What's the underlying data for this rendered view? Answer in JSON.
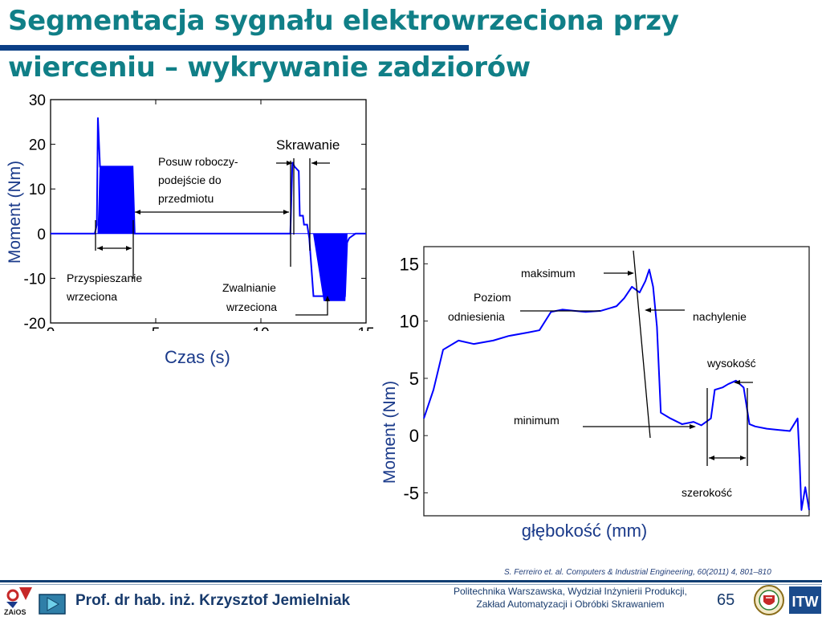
{
  "slide": {
    "title_line1": "Segmentacja sygnału elektrowrzeciona przy",
    "title_line2": "wierceniu – wykrywanie zadziorów",
    "citation": "S. Ferreiro et. al. Computers & Industrial Engineering, 60(2011) 4, 801–810",
    "author": "Prof. dr hab. inż. Krzysztof Jemielniak",
    "institute_line1": "Politechnika Warszawska, Wydział Inżynierii Produkcji,",
    "institute_line2": "Zakład Automatyzacji i Obróbki Skrawaniem",
    "page_number": "65",
    "logo_left_text": "ZAiOS",
    "logo_right_text": "ITW",
    "colors": {
      "title": "#107f87",
      "bar": "#0b3f86",
      "signal": "#0000ff",
      "footer": "#173a6c"
    }
  },
  "chart_data": [
    {
      "type": "line",
      "xlabel": "Czas (s)",
      "ylabel": "Moment (Nm)",
      "xlim": [
        0,
        15
      ],
      "ylim": [
        -20,
        30
      ],
      "x_ticks": [
        0,
        5,
        10,
        15
      ],
      "y_ticks": [
        -20,
        -10,
        0,
        10,
        20,
        30
      ],
      "x_tick_labels": [
        "0",
        "5",
        "10",
        "15"
      ],
      "y_tick_labels": [
        "-20",
        "-10",
        "0",
        "10",
        "20",
        "30"
      ],
      "grid": false,
      "series": [
        {
          "x": [
            0,
            2.1,
            2.2,
            2.25,
            2.35,
            2.5,
            3,
            3.5,
            3.9,
            4.0,
            4.2,
            5,
            7,
            9,
            11,
            11.4,
            11.5,
            11.6,
            11.8,
            11.85,
            12.0,
            12.05,
            12.2,
            12.3,
            12.5,
            13,
            13.5,
            14.0,
            14.1,
            14.2,
            14.5,
            15
          ],
          "y": [
            0,
            0,
            2,
            26,
            15,
            15,
            15,
            15,
            15,
            0,
            0,
            0,
            0,
            0,
            0,
            0,
            16,
            15,
            14,
            4,
            4,
            2,
            2,
            -1,
            -14,
            -14,
            -14,
            -14,
            -2,
            -1,
            0,
            0
          ],
          "band_upper": [
            0,
            0,
            0,
            0,
            15,
            15,
            15,
            15,
            15,
            0,
            0,
            0,
            0,
            0,
            0,
            0,
            0,
            0,
            0,
            0,
            0,
            0,
            0,
            0,
            0,
            0,
            0,
            0,
            0,
            0,
            0,
            0
          ],
          "band_lower": [
            0,
            0,
            0,
            0,
            0,
            0,
            0,
            0,
            0,
            0,
            0,
            0,
            0,
            0,
            0,
            0,
            0,
            0,
            0,
            0,
            0,
            0,
            0,
            0,
            0,
            -15,
            -15,
            -15,
            0,
            0,
            0,
            0
          ]
        }
      ],
      "annotations": [
        {
          "id": "posuw",
          "lines": [
            "Posuw roboczy-",
            "podejście do",
            "przedmiotu"
          ]
        },
        {
          "id": "skrawanie",
          "lines": [
            "Skrawanie"
          ]
        },
        {
          "id": "przyspieszanie",
          "lines": [
            "Przyspieszanie",
            "wrzeciona"
          ]
        },
        {
          "id": "zwalnianie",
          "lines": [
            "Zwalnianie",
            "wrzeciona"
          ]
        }
      ]
    },
    {
      "type": "line",
      "xlabel": "głębokość (mm)",
      "ylabel": "Moment (Nm)",
      "xlim": [
        0,
        10
      ],
      "ylim": [
        -7,
        16.5
      ],
      "y_ticks": [
        -5,
        0,
        5,
        10,
        15
      ],
      "y_tick_labels": [
        "-5",
        "0",
        "5",
        "10",
        "15"
      ],
      "grid": false,
      "series": [
        {
          "x": [
            0,
            0.25,
            0.5,
            0.9,
            1.3,
            1.8,
            2.2,
            2.7,
            3.0,
            3.3,
            3.6,
            3.9,
            4.2,
            4.6,
            5.0,
            5.2,
            5.4,
            5.6,
            5.75,
            5.85,
            5.95,
            6.05,
            6.15,
            6.4,
            6.7,
            7.0,
            7.2,
            7.45,
            7.55,
            7.75,
            7.9,
            8.1,
            8.3,
            8.45,
            8.6,
            8.9,
            9.2,
            9.5,
            9.7,
            9.75,
            9.8,
            9.9,
            10
          ],
          "y": [
            1.5,
            4,
            7.5,
            8.3,
            8.0,
            8.3,
            8.7,
            9.0,
            9.2,
            10.8,
            11.0,
            10.9,
            10.8,
            10.9,
            11.3,
            12.0,
            13.0,
            12.5,
            13.5,
            14.5,
            13.0,
            9.5,
            2.0,
            1.5,
            1.0,
            1.2,
            0.9,
            1.5,
            4.0,
            4.2,
            4.5,
            4.8,
            4.2,
            1.0,
            0.8,
            0.6,
            0.5,
            0.4,
            1.5,
            -2.0,
            -6.5,
            -4.5,
            -6.5
          ]
        }
      ],
      "annotations": [
        {
          "id": "maksimum",
          "lines": [
            "maksimum"
          ]
        },
        {
          "id": "poziom",
          "lines": [
            "Poziom",
            "odniesienia"
          ]
        },
        {
          "id": "nachylenie",
          "lines": [
            "nachylenie"
          ]
        },
        {
          "id": "wysokosc",
          "lines": [
            "wysokość"
          ]
        },
        {
          "id": "minimum",
          "lines": [
            "minimum"
          ]
        },
        {
          "id": "szerokosc",
          "lines": [
            "szerokość"
          ]
        }
      ]
    }
  ]
}
